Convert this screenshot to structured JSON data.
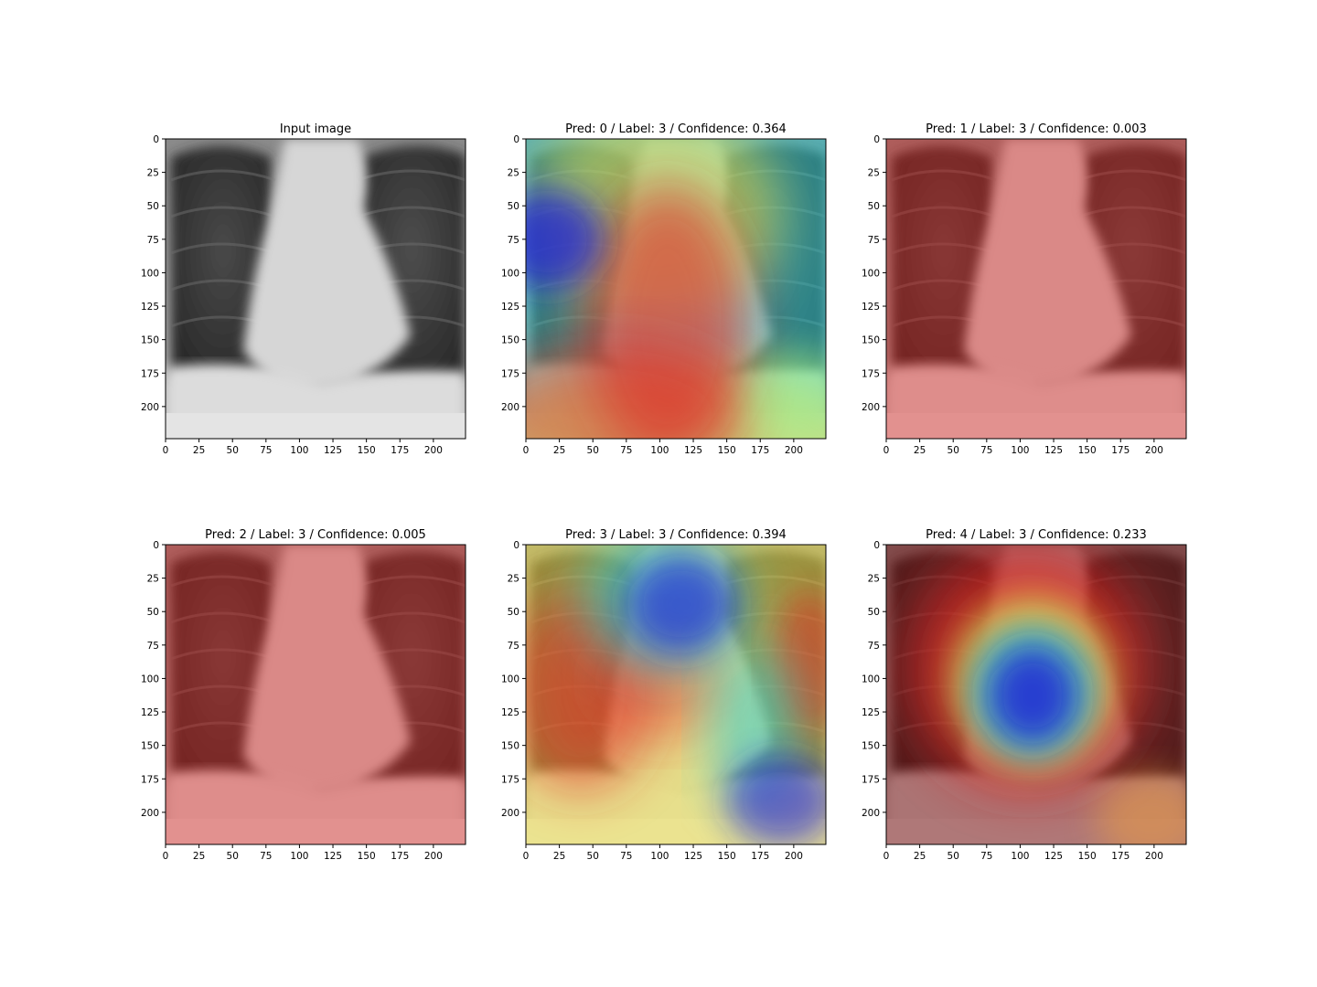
{
  "figure": {
    "panels": [
      {
        "title": "Input image",
        "kind": "xray"
      },
      {
        "title": "Pred: 0 / Label: 3 / Confidence: 0.364",
        "kind": "cam0"
      },
      {
        "title": "Pred: 1 / Label: 3 / Confidence: 0.003",
        "kind": "red"
      },
      {
        "title": "Pred: 2 / Label: 3 / Confidence: 0.005",
        "kind": "red"
      },
      {
        "title": "Pred: 3 / Label: 3 / Confidence: 0.394",
        "kind": "cam3"
      },
      {
        "title": "Pred: 4 / Label: 3 / Confidence: 0.233",
        "kind": "cam4"
      }
    ],
    "x_ticks": [
      "0",
      "25",
      "50",
      "75",
      "100",
      "125",
      "150",
      "175",
      "200"
    ],
    "y_ticks": [
      "0",
      "25",
      "50",
      "75",
      "100",
      "125",
      "150",
      "175",
      "200"
    ],
    "image_extent": 224,
    "colors": {
      "overlay_red": "#e0201a",
      "jet_blue": "#1f1fd8",
      "jet_cyan": "#28d0d8",
      "jet_yellow": "#f0e24a",
      "jet_red": "#e02222",
      "jet_dark_red": "#7a0c0c"
    }
  }
}
